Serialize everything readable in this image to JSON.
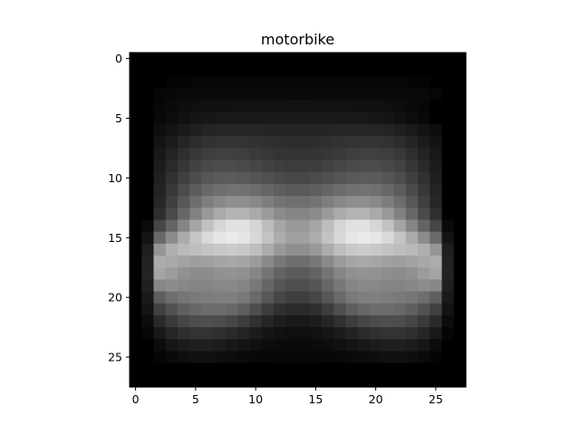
{
  "chart_data": {
    "type": "heatmap",
    "title": "motorbike",
    "xlabel": "",
    "ylabel": "",
    "colormap": "gray",
    "rows": 28,
    "cols": 28,
    "xlim": [
      -0.5,
      27.5
    ],
    "ylim": [
      27.5,
      -0.5
    ],
    "x_ticks": [
      0,
      5,
      10,
      15,
      20,
      25
    ],
    "y_ticks": [
      0,
      5,
      10,
      15,
      20,
      25
    ],
    "x_tick_labels": [
      "0",
      "5",
      "10",
      "15",
      "20",
      "25"
    ],
    "y_tick_labels": [
      "0",
      "5",
      "10",
      "15",
      "20",
      "25"
    ],
    "grid": false,
    "values": [
      [
        0,
        0,
        0,
        0,
        0,
        0,
        0,
        0,
        0,
        0,
        0,
        0,
        0,
        0,
        0,
        0,
        0,
        0,
        0,
        0,
        0,
        0,
        0,
        0,
        0,
        0,
        0,
        0
      ],
      [
        0,
        0,
        0,
        0,
        0,
        0,
        0,
        0,
        0,
        0,
        0,
        0,
        0,
        0,
        0,
        0,
        0,
        0,
        0,
        0,
        0,
        0,
        0,
        0,
        0,
        0,
        0,
        0
      ],
      [
        0,
        0,
        0,
        4,
        5,
        6,
        6,
        6,
        6,
        6,
        6,
        6,
        6,
        6,
        6,
        6,
        6,
        6,
        6,
        6,
        6,
        6,
        6,
        5,
        4,
        0,
        0,
        0
      ],
      [
        0,
        0,
        6,
        8,
        9,
        10,
        10,
        10,
        10,
        10,
        10,
        10,
        10,
        10,
        10,
        10,
        10,
        10,
        10,
        10,
        10,
        10,
        10,
        9,
        8,
        6,
        0,
        0
      ],
      [
        0,
        0,
        7,
        10,
        13,
        15,
        16,
        16,
        17,
        17,
        17,
        17,
        17,
        18,
        18,
        17,
        17,
        17,
        17,
        16,
        16,
        15,
        13,
        10,
        7,
        0,
        0,
        0
      ],
      [
        0,
        0,
        9,
        13,
        17,
        21,
        23,
        24,
        25,
        25,
        25,
        25,
        25,
        26,
        26,
        25,
        25,
        25,
        25,
        24,
        23,
        21,
        17,
        13,
        9,
        0,
        0,
        0
      ],
      [
        0,
        0,
        14,
        20,
        26,
        32,
        36,
        38,
        39,
        39,
        38,
        37,
        37,
        37,
        37,
        37,
        37,
        38,
        39,
        39,
        38,
        36,
        32,
        26,
        20,
        14,
        0,
        0
      ],
      [
        0,
        0,
        19,
        28,
        37,
        45,
        50,
        52,
        53,
        52,
        50,
        48,
        46,
        45,
        45,
        46,
        48,
        50,
        52,
        53,
        52,
        50,
        45,
        37,
        28,
        19,
        0,
        0
      ],
      [
        0,
        0,
        24,
        35,
        46,
        56,
        62,
        64,
        64,
        62,
        58,
        55,
        52,
        51,
        51,
        52,
        55,
        58,
        62,
        64,
        64,
        62,
        56,
        46,
        35,
        24,
        0,
        0
      ],
      [
        0,
        0,
        28,
        42,
        55,
        66,
        73,
        76,
        76,
        74,
        70,
        66,
        62,
        60,
        60,
        62,
        66,
        70,
        74,
        76,
        76,
        73,
        66,
        55,
        42,
        28,
        0,
        0
      ],
      [
        0,
        0,
        32,
        49,
        64,
        77,
        86,
        90,
        91,
        89,
        85,
        80,
        75,
        72,
        72,
        75,
        80,
        85,
        89,
        91,
        90,
        86,
        77,
        64,
        49,
        32,
        0,
        0
      ],
      [
        0,
        0,
        35,
        56,
        75,
        92,
        104,
        111,
        114,
        113,
        108,
        101,
        94,
        90,
        90,
        94,
        101,
        108,
        113,
        114,
        111,
        104,
        92,
        75,
        56,
        35,
        0,
        0
      ],
      [
        0,
        0,
        39,
        63,
        87,
        109,
        126,
        137,
        143,
        142,
        136,
        126,
        116,
        111,
        111,
        116,
        126,
        136,
        142,
        143,
        137,
        126,
        109,
        87,
        63,
        39,
        0,
        0
      ],
      [
        0,
        0,
        47,
        74,
        103,
        130,
        153,
        170,
        179,
        179,
        170,
        155,
        140,
        133,
        133,
        140,
        155,
        170,
        179,
        179,
        170,
        153,
        130,
        103,
        74,
        47,
        0,
        0
      ],
      [
        0,
        10,
        70,
        100,
        133,
        165,
        194,
        214,
        225,
        225,
        212,
        189,
        166,
        153,
        153,
        166,
        189,
        212,
        225,
        225,
        214,
        194,
        165,
        133,
        100,
        70,
        10,
        0
      ],
      [
        0,
        20,
        105,
        140,
        170,
        197,
        218,
        230,
        234,
        230,
        216,
        195,
        172,
        160,
        160,
        172,
        195,
        216,
        230,
        234,
        230,
        218,
        197,
        170,
        140,
        105,
        20,
        0
      ],
      [
        0,
        30,
        150,
        175,
        185,
        190,
        195,
        200,
        203,
        200,
        190,
        172,
        153,
        143,
        143,
        153,
        172,
        190,
        200,
        203,
        200,
        195,
        190,
        185,
        175,
        150,
        30,
        0
      ],
      [
        0,
        34,
        172,
        168,
        162,
        158,
        160,
        165,
        168,
        165,
        155,
        138,
        120,
        110,
        110,
        120,
        138,
        155,
        165,
        168,
        165,
        160,
        158,
        162,
        168,
        172,
        34,
        0
      ],
      [
        0,
        35,
        165,
        155,
        145,
        140,
        141,
        145,
        147,
        144,
        133,
        116,
        99,
        90,
        90,
        99,
        116,
        133,
        144,
        147,
        145,
        141,
        140,
        145,
        155,
        165,
        35,
        0
      ],
      [
        0,
        32,
        135,
        140,
        135,
        132,
        133,
        136,
        137,
        133,
        120,
        102,
        86,
        78,
        78,
        86,
        102,
        120,
        133,
        137,
        136,
        133,
        132,
        135,
        140,
        135,
        32,
        0
      ],
      [
        0,
        26,
        95,
        110,
        118,
        122,
        125,
        127,
        127,
        121,
        106,
        87,
        71,
        63,
        63,
        71,
        87,
        106,
        121,
        127,
        127,
        125,
        122,
        118,
        110,
        95,
        26,
        0
      ],
      [
        0,
        20,
        65,
        82,
        95,
        104,
        108,
        108,
        104,
        94,
        78,
        61,
        48,
        42,
        42,
        48,
        61,
        78,
        94,
        104,
        108,
        108,
        104,
        95,
        82,
        65,
        20,
        0
      ],
      [
        0,
        12,
        42,
        58,
        70,
        77,
        79,
        76,
        70,
        60,
        48,
        37,
        29,
        25,
        25,
        29,
        37,
        48,
        60,
        70,
        76,
        79,
        77,
        70,
        58,
        42,
        12,
        0
      ],
      [
        0,
        6,
        24,
        38,
        47,
        51,
        51,
        48,
        42,
        35,
        27,
        21,
        17,
        15,
        15,
        17,
        21,
        27,
        35,
        42,
        48,
        51,
        51,
        47,
        38,
        24,
        6,
        0
      ],
      [
        0,
        0,
        12,
        22,
        28,
        31,
        31,
        28,
        24,
        20,
        16,
        13,
        11,
        10,
        10,
        11,
        13,
        16,
        20,
        24,
        28,
        31,
        31,
        28,
        22,
        12,
        0,
        0
      ],
      [
        0,
        0,
        5,
        10,
        14,
        16,
        16,
        14,
        12,
        10,
        8,
        7,
        6,
        6,
        6,
        6,
        7,
        8,
        10,
        12,
        14,
        16,
        16,
        14,
        10,
        5,
        0,
        0
      ],
      [
        0,
        0,
        0,
        0,
        0,
        0,
        0,
        0,
        0,
        0,
        0,
        0,
        0,
        0,
        0,
        0,
        0,
        0,
        0,
        0,
        0,
        0,
        0,
        0,
        0,
        0,
        0,
        0
      ],
      [
        0,
        0,
        0,
        0,
        0,
        0,
        0,
        0,
        0,
        0,
        0,
        0,
        0,
        0,
        0,
        0,
        0,
        0,
        0,
        0,
        0,
        0,
        0,
        0,
        0,
        0,
        0,
        0
      ]
    ]
  }
}
